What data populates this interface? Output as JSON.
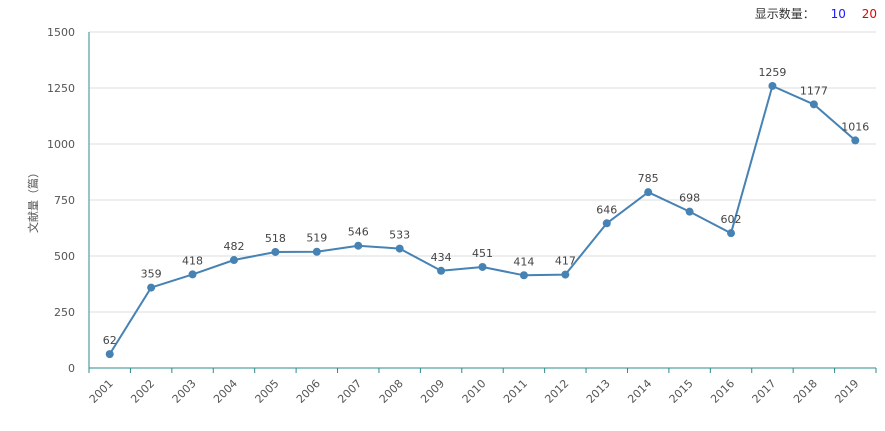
{
  "controls": {
    "label": "显示数量：",
    "option_10": "10",
    "option_20": "20",
    "color_10": "#1a1aff",
    "color_20": "#e60000"
  },
  "chart_data": {
    "type": "line",
    "ylabel": "文献量（篇）",
    "x": [
      "2001",
      "2002",
      "2003",
      "2004",
      "2005",
      "2006",
      "2007",
      "2008",
      "2009",
      "2010",
      "2011",
      "2012",
      "2013",
      "2014",
      "2015",
      "2016",
      "2017",
      "2018",
      "2019"
    ],
    "series": [
      {
        "values": [
          62,
          359,
          418,
          482,
          518,
          519,
          546,
          533,
          434,
          451,
          414,
          417,
          646,
          785,
          698,
          602,
          1259,
          1177,
          1016
        ]
      }
    ],
    "ylim": [
      0,
      1500
    ],
    "yticks": [
      0,
      250,
      500,
      750,
      1000,
      1250,
      1500
    ],
    "grid": true,
    "line_color": "#4682b4",
    "axis_color": "#2e8b8b"
  }
}
